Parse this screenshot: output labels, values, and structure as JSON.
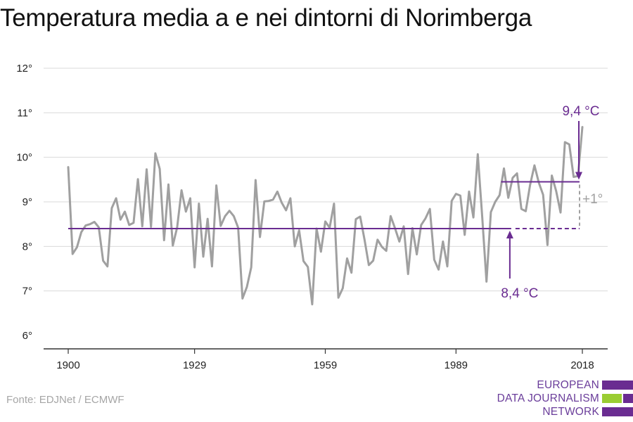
{
  "title": "Temperatura media a e nei dintorni di Norimberga",
  "source": "Fonte: EDJNet / ECMWF",
  "logo": {
    "line1": "EUROPEAN",
    "line2": "DATA JOURNALISM",
    "line3": "NETWORK",
    "colors": [
      "#6a2c91",
      "#9acd32",
      "#6a2c91"
    ]
  },
  "colors": {
    "series": "#a0a0a0",
    "average": "#6a2c91",
    "delta": "#a0a0a0",
    "grid": "#d9d9d9",
    "axis": "#333333"
  },
  "chart_data": {
    "type": "line",
    "title": "Temperatura media a e nei dintorni di Norimberga",
    "ylim": [
      6,
      12
    ],
    "xlim": [
      1900,
      2018
    ],
    "y_ticks": [
      6,
      7,
      8,
      9,
      10,
      11,
      12
    ],
    "y_tick_labels": [
      "6°",
      "7°",
      "8°",
      "9°",
      "10°",
      "11°",
      "12°"
    ],
    "x_ticks": [
      1900,
      1929,
      1959,
      1989,
      2018
    ],
    "x_tick_labels": [
      "1900",
      "1929",
      "1959",
      "1989",
      "2018"
    ],
    "grid": true,
    "series": [
      {
        "x": [
          1900,
          1901,
          1902,
          1903,
          1904,
          1905,
          1906,
          1907,
          1908,
          1909,
          1910,
          1911,
          1912,
          1913,
          1914,
          1915,
          1916,
          1917,
          1918,
          1919,
          1920,
          1921,
          1922,
          1923,
          1924,
          1925,
          1926,
          1927,
          1928,
          1929,
          1930,
          1931,
          1932,
          1933,
          1934,
          1935,
          1936,
          1937,
          1938,
          1939,
          1940,
          1941,
          1942,
          1943,
          1944,
          1945,
          1946,
          1947,
          1948,
          1949,
          1950,
          1951,
          1952,
          1953,
          1954,
          1955,
          1956,
          1957,
          1958,
          1959,
          1960,
          1961,
          1962,
          1963,
          1964,
          1965,
          1966,
          1967,
          1968,
          1969,
          1970,
          1971,
          1972,
          1973,
          1974,
          1975,
          1976,
          1977,
          1978,
          1979,
          1980,
          1981,
          1982,
          1983,
          1984,
          1985,
          1986,
          1987,
          1988,
          1989,
          1990,
          1991,
          1992,
          1993,
          1994,
          1995,
          1996,
          1997,
          1998,
          1999,
          2000,
          2001,
          2002,
          2003,
          2004,
          2005,
          2006,
          2007,
          2008,
          2009,
          2010,
          2011,
          2012,
          2013,
          2014,
          2015,
          2016,
          2017,
          2018
        ],
        "values": [
          9.78,
          7.83,
          7.98,
          8.32,
          8.47,
          8.5,
          8.55,
          8.43,
          7.68,
          7.55,
          8.86,
          9.08,
          8.6,
          8.78,
          8.48,
          8.53,
          9.51,
          8.45,
          9.73,
          8.44,
          10.09,
          9.74,
          8.14,
          9.39,
          8.02,
          8.43,
          9.26,
          8.78,
          9.08,
          7.53,
          8.96,
          7.77,
          8.62,
          7.55,
          9.37,
          8.46,
          8.68,
          8.8,
          8.68,
          8.42,
          6.83,
          7.09,
          7.53,
          9.49,
          8.21,
          9.01,
          9.02,
          9.05,
          9.23,
          8.98,
          8.81,
          9.08,
          8.0,
          8.36,
          7.67,
          7.54,
          6.7,
          8.4,
          7.88,
          8.56,
          8.42,
          8.96,
          6.85,
          7.06,
          7.73,
          7.41,
          8.61,
          8.67,
          8.15,
          7.58,
          7.68,
          8.15,
          7.99,
          7.9,
          8.68,
          8.41,
          8.11,
          8.45,
          7.38,
          8.41,
          7.82,
          8.48,
          8.63,
          8.84,
          7.7,
          7.48,
          8.11,
          7.55,
          9.02,
          9.18,
          9.14,
          8.26,
          9.23,
          8.65,
          10.07,
          8.69,
          7.21,
          8.77,
          9.0,
          9.15,
          9.75,
          9.09,
          9.54,
          9.64,
          8.84,
          8.79,
          9.38,
          9.82,
          9.43,
          9.16,
          8.03,
          9.59,
          9.24,
          8.76,
          10.34,
          10.29,
          9.56,
          9.58,
          10.68
        ]
      }
    ],
    "reference_lines": [
      {
        "label": "8,4 °C",
        "value": 8.4,
        "x_start": 1900,
        "x_end": 2018,
        "dashed_from": 2002
      },
      {
        "label": "9,4 °C",
        "value": 9.45,
        "x_start": 2000,
        "x_end": 2018
      }
    ],
    "annotations": [
      {
        "text": "8,4 °C",
        "x": 2002,
        "y": 8.4
      },
      {
        "text": "9,4 °C",
        "x": 2018,
        "y": 9.45
      },
      {
        "text": "+1°",
        "x": 2018,
        "y": 8.9
      }
    ]
  }
}
